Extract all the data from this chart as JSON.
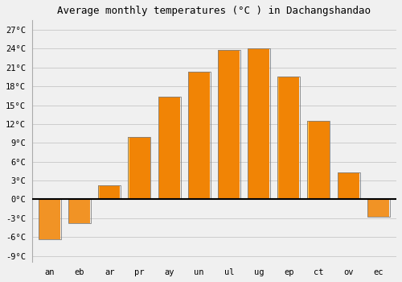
{
  "title": "Average monthly temperatures (°C ) in Dachangshandao",
  "month_labels": [
    "an",
    "eb",
    "ar",
    "pr",
    "ay",
    "un",
    "ul",
    "ug",
    "ep",
    "ct",
    "ov",
    "ec"
  ],
  "values": [
    -6.3,
    -3.8,
    2.3,
    10.0,
    16.3,
    20.3,
    23.8,
    24.0,
    19.5,
    12.5,
    4.3,
    -2.8
  ],
  "bar_color_pos": "#FFA500",
  "bar_color_neg": "#FFB733",
  "bar_edge_color": "#808080",
  "background_color": "#f0f0f0",
  "plot_bg_color": "#f0f0f0",
  "ylim": [
    -10,
    28.5
  ],
  "ytick_vals": [
    -9,
    -6,
    -3,
    0,
    3,
    6,
    9,
    12,
    15,
    18,
    21,
    24,
    27
  ],
  "ytick_labels": [
    "-9°C",
    "-6°C",
    "-3°C",
    "0°C",
    "3°C",
    "6°C",
    "9°C",
    "12°C",
    "15°C",
    "18°C",
    "21°C",
    "24°C",
    "27°C"
  ],
  "title_fontsize": 9,
  "tick_fontsize": 7.5,
  "grid_color": "#cccccc",
  "bar_width": 0.75
}
